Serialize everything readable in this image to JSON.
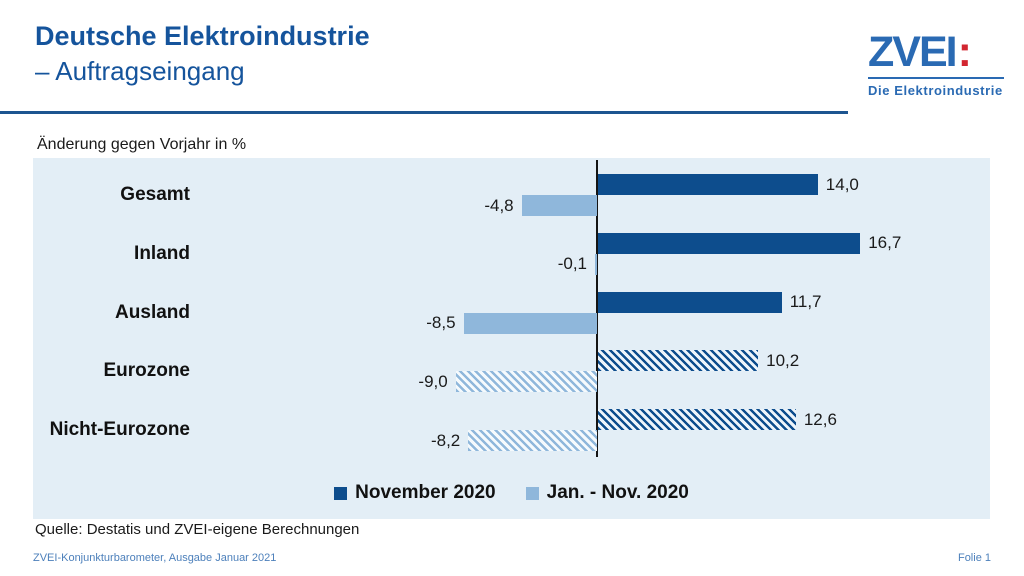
{
  "slide": {
    "title_line1": "Deutsche Elektroindustrie",
    "title_line2": "– Auftragseingang",
    "source": "Quelle: Destatis und ZVEI-eigene Berechnungen",
    "footer_left": "ZVEI-Konjunkturbarometer, Ausgabe Januar 2021",
    "footer_right": "Folie 1"
  },
  "logo": {
    "wordmark": "ZVEI",
    "colon": ":",
    "tagline": "Die Elektroindustrie",
    "blue": "#2a6ab3",
    "red": "#d22630"
  },
  "chart_data": {
    "type": "bar",
    "orientation": "horizontal",
    "title": "Änderung gegen Vorjahr in %",
    "unit": "%",
    "categories": [
      "Gesamt",
      "Inland",
      "Ausland",
      "Eurozone",
      "Nicht-Eurozone"
    ],
    "series": [
      {
        "name": "November 2020",
        "values": [
          14.0,
          16.7,
          11.7,
          10.2,
          12.6
        ],
        "value_labels": [
          "14,0",
          "16,7",
          "11,7",
          "10,2",
          "12,6"
        ],
        "color": "#0d4d8d"
      },
      {
        "name": "Jan. - Nov. 2020",
        "values": [
          -4.8,
          -0.1,
          -8.5,
          -9.0,
          -8.2
        ],
        "value_labels": [
          "-4,8",
          "-0,1",
          "-8,5",
          "-9,0",
          "-8,2"
        ],
        "color": "#8fb7db"
      }
    ],
    "hatched_rows": [
      false,
      false,
      false,
      true,
      true
    ],
    "axis": {
      "zero_line": true,
      "gridlines": false,
      "value_ticks_hidden": true
    },
    "xlim": [
      -12,
      25
    ],
    "legend_position": "bottom",
    "plot_background": "#e3eef6"
  }
}
